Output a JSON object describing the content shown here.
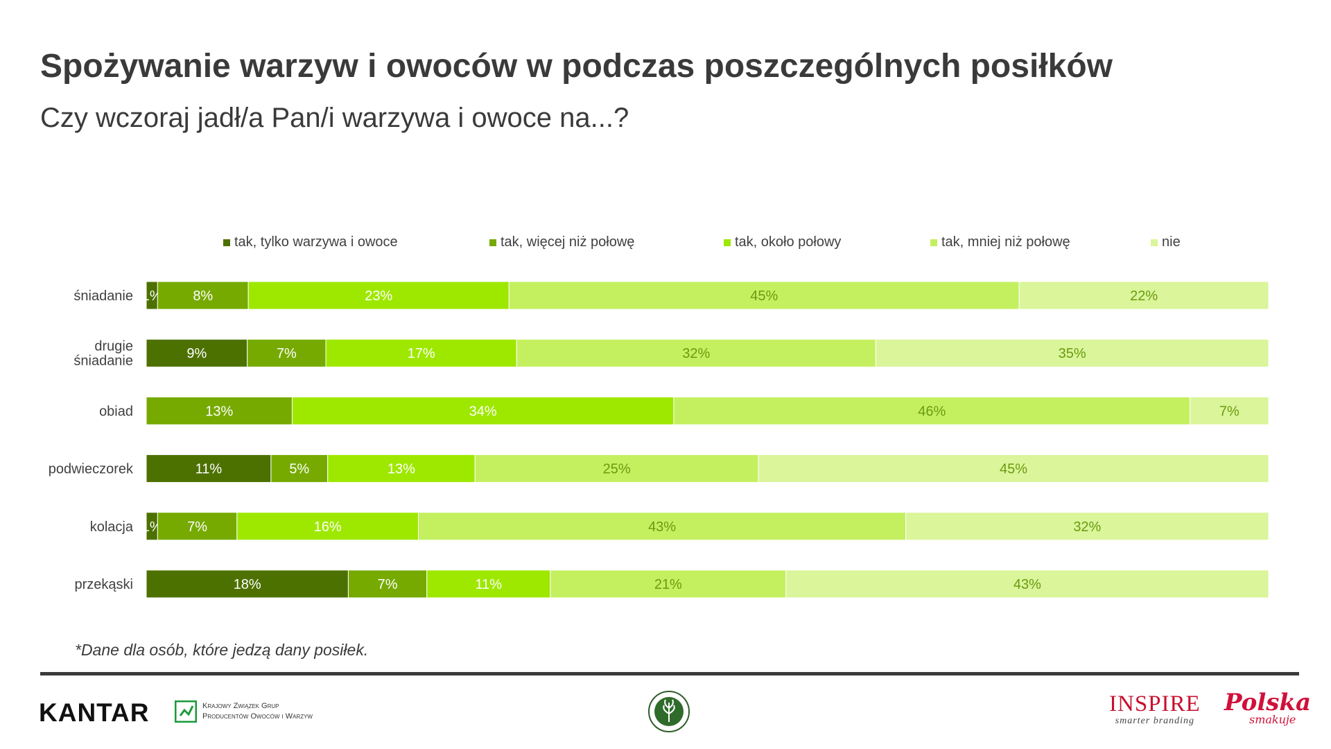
{
  "header": {
    "title": "Spożywanie warzyw i owoców w podczas poszczególnych posiłków",
    "subtitle": "Czy wczoraj jadł/a Pan/i warzywa i owoce na...?"
  },
  "chart_data": {
    "type": "bar",
    "orientation": "horizontal",
    "stacked": true,
    "percent_stacked": true,
    "grid": false,
    "legend_position": "top",
    "categories": [
      [
        "śniadanie"
      ],
      [
        "drugie",
        "śniadanie"
      ],
      [
        "obiad"
      ],
      [
        "podwieczorek"
      ],
      [
        "kolacja"
      ],
      [
        "przekąski"
      ]
    ],
    "series": [
      {
        "name": "tak, tylko warzywa i owoce",
        "color": "#4d7100",
        "label_color": "#ffffff",
        "values": [
          1,
          9,
          0,
          11,
          1,
          18
        ]
      },
      {
        "name": "tak, więcej niż połowę",
        "color": "#76aa00",
        "label_color": "#ffffff",
        "values": [
          8,
          7,
          13,
          5,
          7,
          7
        ]
      },
      {
        "name": "tak, około połowy",
        "color": "#9ee800",
        "label_color": "#ffffff",
        "values": [
          23,
          17,
          34,
          13,
          16,
          11
        ]
      },
      {
        "name": "tak, mniej niż połowę",
        "color": "#c4f060",
        "label_color": "#6a9a10",
        "values": [
          45,
          32,
          46,
          25,
          43,
          21
        ]
      },
      {
        "name": "nie",
        "color": "#daf59a",
        "label_color": "#6a9a10",
        "values": [
          22,
          35,
          7,
          45,
          32,
          43
        ]
      }
    ],
    "value_suffix": "%"
  },
  "footnote": "*Dane dla osób, które jedzą dany posiłek.",
  "footer": {
    "kantar": "KANTAR",
    "kzg_line1": "Krajowy Związek Grup",
    "kzg_line2": "Producentów Owoców i Warzyw",
    "inspire": "INSPIRE",
    "inspire_tagline": "smarter branding",
    "polska": "Polska",
    "polska_sub": "smakuje"
  }
}
